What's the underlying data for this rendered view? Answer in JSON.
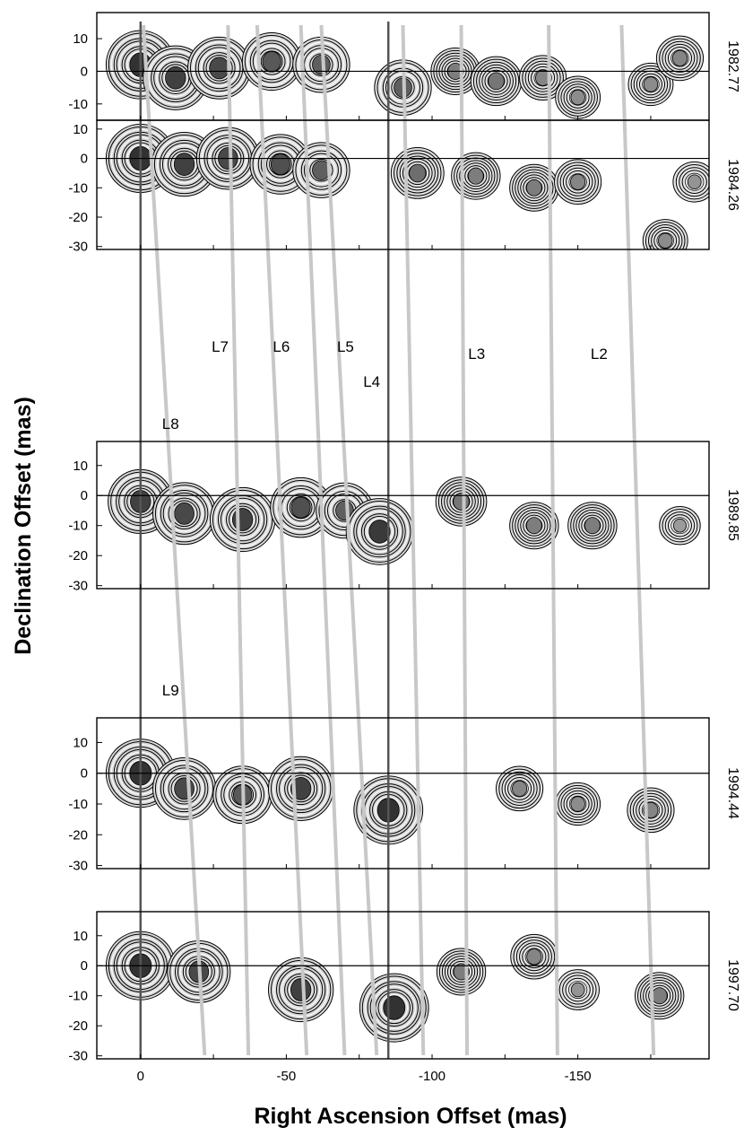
{
  "chart_data": {
    "type": "contour",
    "xlabel": "Right Ascension Offset (mas)",
    "ylabel": "Declination Offset (mas)",
    "xlim": [
      15,
      -195
    ],
    "x_ticks": [
      0,
      -50,
      -100,
      -150
    ],
    "panels": [
      {
        "epoch": "1982.77",
        "ylim": [
          -15,
          18
        ],
        "y_ticks": [
          10,
          0,
          -10
        ]
      },
      {
        "epoch": "1984.26",
        "ylim": [
          -31,
          13
        ],
        "y_ticks": [
          10,
          0,
          -10,
          -20,
          -30
        ]
      },
      {
        "epoch": "1989.85",
        "ylim": [
          -31,
          18
        ],
        "y_ticks": [
          10,
          0,
          -10,
          -20,
          -30
        ]
      },
      {
        "epoch": "1994.44",
        "ylim": [
          -31,
          18
        ],
        "y_ticks": [
          10,
          0,
          -10,
          -20,
          -30
        ]
      },
      {
        "epoch": "1997.70",
        "ylim": [
          -31,
          18
        ],
        "y_ticks": [
          10,
          0,
          -10,
          -20,
          -30
        ]
      }
    ],
    "reference_lines_ra": [
      0,
      -85
    ],
    "components": [
      {
        "name": "L2",
        "label_ra": -155
      },
      {
        "name": "L3",
        "label_ra": -113
      },
      {
        "name": "L4",
        "label_ra": -77
      },
      {
        "name": "L5",
        "label_ra": -68
      },
      {
        "name": "L6",
        "label_ra": -46
      },
      {
        "name": "L7",
        "label_ra": -25
      },
      {
        "name": "L8",
        "label_ra": -8
      },
      {
        "name": "L9",
        "label_ra": -8
      }
    ],
    "component_tracks": [
      {
        "ra_1982": -1,
        "ra_1997": -22
      },
      {
        "ra_1982": -30,
        "ra_1997": -37
      },
      {
        "ra_1982": -40,
        "ra_1997": -57
      },
      {
        "ra_1982": -55,
        "ra_1997": -70
      },
      {
        "ra_1982": -62,
        "ra_1997": -81
      },
      {
        "ra_1982": -90,
        "ra_1997": -97
      },
      {
        "ra_1982": -110,
        "ra_1997": -112
      },
      {
        "ra_1982": -140,
        "ra_1997": -143
      },
      {
        "ra_1982": -165,
        "ra_1997": -176
      }
    ],
    "emission_blobs": [
      {
        "panel": 0,
        "ra": 0,
        "dec": 2,
        "strength": 1.0
      },
      {
        "panel": 0,
        "ra": -12,
        "dec": -2,
        "strength": 0.9
      },
      {
        "panel": 0,
        "ra": -27,
        "dec": 1,
        "strength": 0.85
      },
      {
        "panel": 0,
        "ra": -45,
        "dec": 3,
        "strength": 0.75
      },
      {
        "panel": 0,
        "ra": -62,
        "dec": 2,
        "strength": 0.7
      },
      {
        "panel": 0,
        "ra": -90,
        "dec": -5,
        "strength": 0.7
      },
      {
        "panel": 0,
        "ra": -108,
        "dec": 0,
        "strength": 0.5
      },
      {
        "panel": 0,
        "ra": -122,
        "dec": -3,
        "strength": 0.55
      },
      {
        "panel": 0,
        "ra": -138,
        "dec": -2,
        "strength": 0.45
      },
      {
        "panel": 0,
        "ra": -150,
        "dec": -8,
        "strength": 0.4
      },
      {
        "panel": 0,
        "ra": -175,
        "dec": -4,
        "strength": 0.4
      },
      {
        "panel": 0,
        "ra": -185,
        "dec": 4,
        "strength": 0.45
      },
      {
        "panel": 1,
        "ra": 0,
        "dec": 0,
        "strength": 1.0
      },
      {
        "panel": 1,
        "ra": -15,
        "dec": -2,
        "strength": 0.9
      },
      {
        "panel": 1,
        "ra": -30,
        "dec": 0,
        "strength": 0.85
      },
      {
        "panel": 1,
        "ra": -48,
        "dec": -2,
        "strength": 0.8
      },
      {
        "panel": 1,
        "ra": -62,
        "dec": -4,
        "strength": 0.7
      },
      {
        "panel": 1,
        "ra": -95,
        "dec": -5,
        "strength": 0.6
      },
      {
        "panel": 1,
        "ra": -115,
        "dec": -6,
        "strength": 0.5
      },
      {
        "panel": 1,
        "ra": -135,
        "dec": -10,
        "strength": 0.5
      },
      {
        "panel": 1,
        "ra": -150,
        "dec": -8,
        "strength": 0.45
      },
      {
        "panel": 1,
        "ra": -180,
        "dec": -28,
        "strength": 0.4
      },
      {
        "panel": 1,
        "ra": -190,
        "dec": -8,
        "strength": 0.35
      },
      {
        "panel": 2,
        "ra": 0,
        "dec": -2,
        "strength": 0.9
      },
      {
        "panel": 2,
        "ra": -15,
        "dec": -6,
        "strength": 0.85
      },
      {
        "panel": 2,
        "ra": -35,
        "dec": -8,
        "strength": 0.9
      },
      {
        "panel": 2,
        "ra": -55,
        "dec": -4,
        "strength": 0.8
      },
      {
        "panel": 2,
        "ra": -70,
        "dec": -5,
        "strength": 0.7
      },
      {
        "panel": 2,
        "ra": -82,
        "dec": -12,
        "strength": 0.95
      },
      {
        "panel": 2,
        "ra": -110,
        "dec": -2,
        "strength": 0.55
      },
      {
        "panel": 2,
        "ra": -135,
        "dec": -10,
        "strength": 0.5
      },
      {
        "panel": 2,
        "ra": -155,
        "dec": -10,
        "strength": 0.5
      },
      {
        "panel": 2,
        "ra": -185,
        "dec": -10,
        "strength": 0.3
      },
      {
        "panel": 3,
        "ra": 0,
        "dec": 0,
        "strength": 1.0
      },
      {
        "panel": 3,
        "ra": -15,
        "dec": -5,
        "strength": 0.85
      },
      {
        "panel": 3,
        "ra": -35,
        "dec": -7,
        "strength": 0.75
      },
      {
        "panel": 3,
        "ra": -55,
        "dec": -5,
        "strength": 0.9
      },
      {
        "panel": 3,
        "ra": -85,
        "dec": -12,
        "strength": 1.0
      },
      {
        "panel": 3,
        "ra": -130,
        "dec": -5,
        "strength": 0.45
      },
      {
        "panel": 3,
        "ra": -150,
        "dec": -10,
        "strength": 0.4
      },
      {
        "panel": 3,
        "ra": -175,
        "dec": -12,
        "strength": 0.45
      },
      {
        "panel": 4,
        "ra": 0,
        "dec": 0,
        "strength": 1.0
      },
      {
        "panel": 4,
        "ra": -20,
        "dec": -2,
        "strength": 0.85
      },
      {
        "panel": 4,
        "ra": -55,
        "dec": -8,
        "strength": 0.9
      },
      {
        "panel": 4,
        "ra": -87,
        "dec": -14,
        "strength": 1.0
      },
      {
        "panel": 4,
        "ra": -110,
        "dec": -2,
        "strength": 0.5
      },
      {
        "panel": 4,
        "ra": -135,
        "dec": 3,
        "strength": 0.45
      },
      {
        "panel": 4,
        "ra": -150,
        "dec": -8,
        "strength": 0.35
      },
      {
        "panel": 4,
        "ra": -178,
        "dec": -10,
        "strength": 0.5
      }
    ]
  }
}
